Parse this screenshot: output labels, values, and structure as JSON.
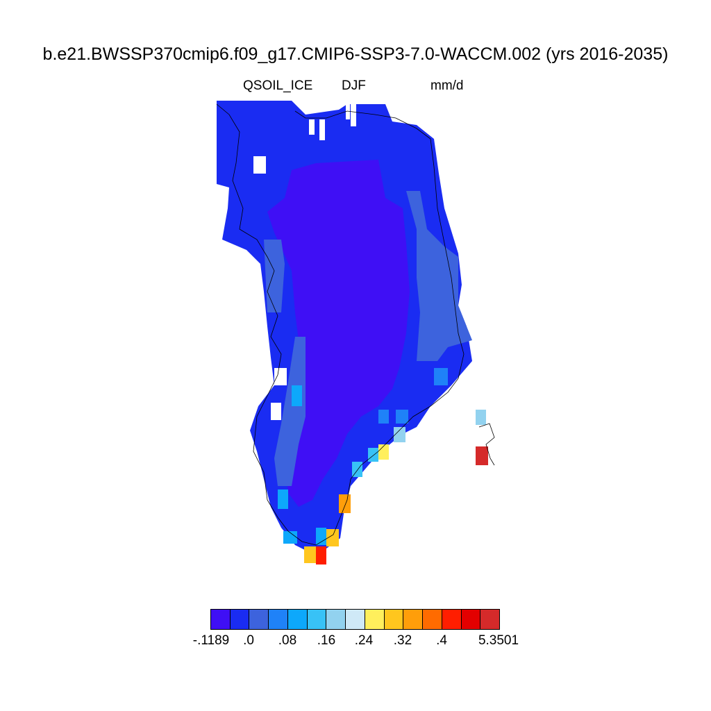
{
  "title": "b.e21.BWSSP370cmip6.f09_g17.CMIP6-SSP3-7.0-WACCM.002 (yrs 2016-2035)",
  "subtitle_left": "QSOIL_ICE",
  "subtitle_center": "DJF",
  "subtitle_right": "mm/d",
  "colorbar": {
    "colors": [
      "#3f0ff5",
      "#1a2cf2",
      "#3d63dd",
      "#1f82f8",
      "#0da8fb",
      "#38c2f6",
      "#92d2ef",
      "#cfe9f7",
      "#ffef5c",
      "#ffc61e",
      "#ff9e0a",
      "#ff6b00",
      "#ff1e00",
      "#e30000",
      "#d52a2a"
    ],
    "tick_labels": [
      "-.1189",
      ".0",
      ".08",
      ".16",
      ".24",
      ".32",
      ".4",
      "5.3501"
    ]
  },
  "map": {
    "land_color": "#1a2cf2",
    "interior_color": "#3f0ff5",
    "legend_meaning": "QSOIL_ICE DJF mean over Greenland"
  }
}
